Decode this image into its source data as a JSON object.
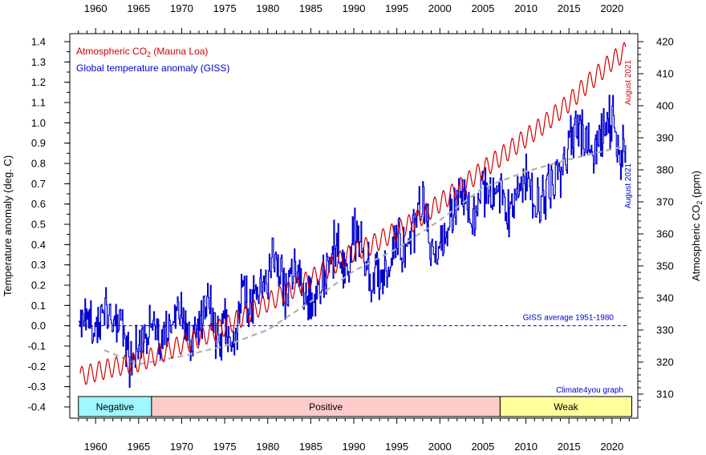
{
  "chart_data": {
    "type": "line",
    "x_range": [
      1957,
      2023
    ],
    "x_ticks": [
      "1960",
      "1965",
      "1970",
      "1975",
      "1980",
      "1985",
      "1990",
      "1995",
      "2000",
      "2005",
      "2010",
      "2015",
      "2020"
    ],
    "left_axis": {
      "label": "Temperature anomaly (deg. C)",
      "range": [
        -0.4,
        1.4
      ],
      "ticks": [
        "1.4",
        "1.3",
        "1.2",
        "1.1",
        "1.0",
        "0.9",
        "0.8",
        "0.7",
        "0.6",
        "0.5",
        "0.4",
        "0.3",
        "0.2",
        "0.1",
        "0.0",
        "-0.1",
        "-0.2",
        "-0.3",
        "-0.4"
      ]
    },
    "right_axis": {
      "label_main": "Atmospheric CO",
      "label_sub": "2",
      "label_end": " (ppm)",
      "range": [
        305,
        420
      ],
      "ticks": [
        "420",
        "410",
        "400",
        "390",
        "380",
        "370",
        "360",
        "350",
        "340",
        "330",
        "320",
        "310"
      ]
    },
    "legend": [
      {
        "name": "Atmospheric CO",
        "sub": "2",
        "suffix": " (Mauna Loa)",
        "color": "#d40000"
      },
      {
        "name": "Global temperature anomaly (GISS)",
        "sub": "",
        "suffix": "",
        "color": "#0000d0"
      }
    ],
    "series": [
      {
        "name": "Atmospheric CO2 (Mauna Loa)",
        "axis": "right",
        "color": "#d40000",
        "x": [
          1958.2,
          1960,
          1962,
          1965,
          1967,
          1970,
          1972,
          1975,
          1977,
          1980,
          1982,
          1985,
          1987,
          1990,
          1992,
          1995,
          1997,
          2000,
          2002,
          2005,
          2007,
          2010,
          2012,
          2015,
          2017,
          2019,
          2020,
          2021.6
        ],
        "y": [
          315.5,
          316.9,
          318.4,
          320.0,
          322.0,
          325.5,
          327.5,
          331.1,
          334.0,
          338.7,
          341.5,
          346.0,
          349.2,
          354.4,
          356.5,
          361.0,
          363.8,
          369.7,
          373.8,
          380.0,
          384.0,
          390.0,
          394.0,
          401.0,
          406.5,
          411.4,
          414.0,
          417.0
        ],
        "seasonal_amplitude": 3.0
      },
      {
        "name": "Global temperature anomaly (GISS)",
        "axis": "left",
        "color": "#0000d0",
        "x": [
          1958,
          1959,
          1960,
          1961,
          1962,
          1963,
          1964,
          1965,
          1966,
          1967,
          1968,
          1969,
          1970,
          1971,
          1972,
          1973,
          1974,
          1975,
          1976,
          1977,
          1978,
          1979,
          1980,
          1981,
          1982,
          1983,
          1984,
          1985,
          1986,
          1987,
          1988,
          1989,
          1990,
          1991,
          1992,
          1993,
          1994,
          1995,
          1996,
          1997,
          1998,
          1999,
          2000,
          2001,
          2002,
          2003,
          2004,
          2005,
          2006,
          2007,
          2008,
          2009,
          2010,
          2011,
          2012,
          2013,
          2014,
          2015,
          2016,
          2017,
          2018,
          2019,
          2020,
          2021
        ],
        "y": [
          0.08,
          0.03,
          -0.02,
          0.06,
          0.03,
          0.05,
          -0.2,
          -0.1,
          -0.04,
          -0.01,
          -0.06,
          0.06,
          0.03,
          -0.08,
          0.01,
          0.16,
          -0.07,
          -0.01,
          -0.1,
          0.18,
          0.07,
          0.16,
          0.26,
          0.32,
          0.14,
          0.31,
          0.16,
          0.12,
          0.18,
          0.33,
          0.4,
          0.27,
          0.44,
          0.41,
          0.22,
          0.23,
          0.31,
          0.44,
          0.33,
          0.46,
          0.61,
          0.38,
          0.39,
          0.53,
          0.63,
          0.62,
          0.54,
          0.68,
          0.63,
          0.66,
          0.54,
          0.65,
          0.72,
          0.61,
          0.64,
          0.68,
          0.75,
          0.9,
          1.01,
          0.92,
          0.85,
          0.98,
          1.02,
          0.85
        ],
        "monthly_noise": 0.11
      },
      {
        "name": "trend",
        "axis": "left",
        "color": "#b0b0b0",
        "style": "dashed",
        "x": [
          1961,
          1965,
          1970,
          1975,
          1980,
          1985,
          1990,
          1995,
          2000,
          2005,
          2010,
          2015,
          2021
        ],
        "y": [
          -0.12,
          -0.19,
          -0.15,
          -0.1,
          -0.02,
          0.12,
          0.27,
          0.38,
          0.52,
          0.68,
          0.76,
          0.82,
          0.88
        ]
      }
    ],
    "reference_line": {
      "value": 0.0,
      "label": "GISS average 1951-1980",
      "color": "#0000d0"
    },
    "annotations": {
      "co2_end": "August 2021",
      "temp_end": "August 2021",
      "credit": "Climate4you graph"
    },
    "enso_phases": [
      {
        "label": "Negative",
        "start": 1958.0,
        "end": 1966.5,
        "color": "#9ff7ff"
      },
      {
        "label": "Positive",
        "start": 1966.5,
        "end": 2007.0,
        "color": "#ffcaca"
      },
      {
        "label": "Weak",
        "start": 2007.0,
        "end": 2022.3,
        "color": "#ffff99"
      }
    ]
  }
}
